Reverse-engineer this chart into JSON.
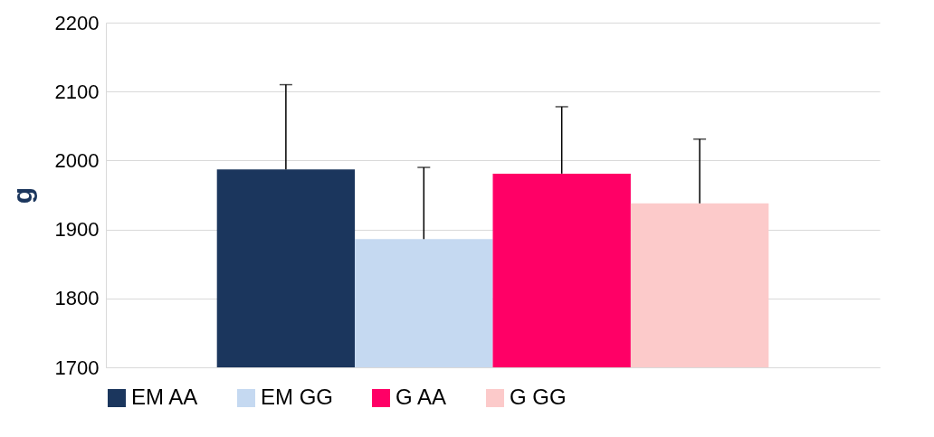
{
  "chart_data": {
    "type": "bar",
    "ylabel": "g",
    "categories": [
      null
    ],
    "series": [
      {
        "name": "EM AA",
        "color": "#1b365d",
        "values": [
          1987
        ],
        "errors": [
          [
            1987,
            2110
          ]
        ]
      },
      {
        "name": "EM GG",
        "color": "#c5d9f1",
        "values": [
          1886
        ],
        "errors": [
          [
            1886,
            1990
          ]
        ]
      },
      {
        "name": "G AA",
        "color": "#ff0066",
        "values": [
          1981
        ],
        "errors": [
          [
            1981,
            2078
          ]
        ]
      },
      {
        "name": "G GG",
        "color": "#fccaca",
        "values": [
          1938
        ],
        "errors": [
          [
            1938,
            2031
          ]
        ]
      }
    ],
    "ylim": [
      1700,
      2200
    ],
    "yticks": [
      1700,
      1800,
      1900,
      2000,
      2100,
      2200
    ],
    "grid": "y",
    "legend": "bottom"
  }
}
